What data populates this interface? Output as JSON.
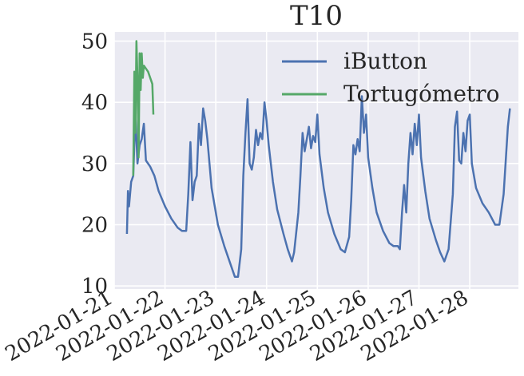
{
  "chart_data": {
    "type": "line",
    "title": "T10",
    "xlabel": "",
    "ylabel": "",
    "x_type": "datetime",
    "xlim": [
      "2022-01-21T00:00",
      "2022-01-28T23:00"
    ],
    "ylim": [
      9.5,
      51.5
    ],
    "y_ticks": [
      10,
      20,
      30,
      40,
      50
    ],
    "x_ticks": [
      "2022-01-21",
      "2022-01-22",
      "2022-01-23",
      "2022-01-24",
      "2022-01-25",
      "2022-01-26",
      "2022-01-27",
      "2022-01-28"
    ],
    "grid": true,
    "legend_position": "top-right",
    "colors": {
      "background": "#EAEAF2",
      "grid": "#FFFFFF",
      "text": "#262626"
    },
    "series": [
      {
        "name": "iButton",
        "color": "#4C72B0",
        "points": [
          [
            "2022-01-21T06:00",
            18.5
          ],
          [
            "2022-01-21T06:30",
            25.5
          ],
          [
            "2022-01-21T07:00",
            23.0
          ],
          [
            "2022-01-21T08:00",
            27.0
          ],
          [
            "2022-01-21T09:00",
            28.0
          ],
          [
            "2022-01-21T10:00",
            38.0
          ],
          [
            "2022-01-21T11:00",
            30.0
          ],
          [
            "2022-01-21T12:00",
            33.0
          ],
          [
            "2022-01-21T13:00",
            34.0
          ],
          [
            "2022-01-21T14:00",
            36.5
          ],
          [
            "2022-01-21T15:00",
            30.5
          ],
          [
            "2022-01-21T17:00",
            29.5
          ],
          [
            "2022-01-21T19:00",
            28.0
          ],
          [
            "2022-01-21T21:00",
            25.5
          ],
          [
            "2022-01-22T00:00",
            23.0
          ],
          [
            "2022-01-22T03:00",
            21.0
          ],
          [
            "2022-01-22T06:00",
            19.5
          ],
          [
            "2022-01-22T08:00",
            19.0
          ],
          [
            "2022-01-22T10:00",
            19.0
          ],
          [
            "2022-01-22T11:00",
            25.0
          ],
          [
            "2022-01-22T12:00",
            33.5
          ],
          [
            "2022-01-22T13:00",
            24.0
          ],
          [
            "2022-01-22T14:00",
            27.0
          ],
          [
            "2022-01-22T15:00",
            28.0
          ],
          [
            "2022-01-22T16:00",
            36.5
          ],
          [
            "2022-01-22T17:00",
            33.0
          ],
          [
            "2022-01-22T18:00",
            39.0
          ],
          [
            "2022-01-22T19:00",
            37.0
          ],
          [
            "2022-01-22T20:00",
            34.0
          ],
          [
            "2022-01-22T22:00",
            26.0
          ],
          [
            "2022-01-23T01:00",
            20.0
          ],
          [
            "2022-01-23T04:00",
            16.5
          ],
          [
            "2022-01-23T07:00",
            13.5
          ],
          [
            "2022-01-23T09:00",
            11.5
          ],
          [
            "2022-01-23T10:30",
            11.5
          ],
          [
            "2022-01-23T12:00",
            16.0
          ],
          [
            "2022-01-23T13:00",
            28.0
          ],
          [
            "2022-01-23T14:00",
            35.0
          ],
          [
            "2022-01-23T15:00",
            40.5
          ],
          [
            "2022-01-23T16:00",
            30.0
          ],
          [
            "2022-01-23T17:00",
            29.0
          ],
          [
            "2022-01-23T18:00",
            31.0
          ],
          [
            "2022-01-23T19:00",
            35.5
          ],
          [
            "2022-01-23T20:00",
            33.0
          ],
          [
            "2022-01-23T21:00",
            35.0
          ],
          [
            "2022-01-23T22:00",
            34.0
          ],
          [
            "2022-01-23T23:00",
            40.0
          ],
          [
            "2022-01-24T00:00",
            37.0
          ],
          [
            "2022-01-24T01:00",
            33.0
          ],
          [
            "2022-01-24T03:00",
            27.0
          ],
          [
            "2022-01-24T05:00",
            22.5
          ],
          [
            "2022-01-24T08:00",
            18.5
          ],
          [
            "2022-01-24T10:00",
            16.0
          ],
          [
            "2022-01-24T12:00",
            14.0
          ],
          [
            "2022-01-24T13:00",
            15.5
          ],
          [
            "2022-01-24T15:00",
            22.0
          ],
          [
            "2022-01-24T16:00",
            28.0
          ],
          [
            "2022-01-24T17:00",
            35.0
          ],
          [
            "2022-01-24T18:00",
            32.0
          ],
          [
            "2022-01-24T19:00",
            34.0
          ],
          [
            "2022-01-24T20:00",
            36.0
          ],
          [
            "2022-01-24T21:00",
            32.5
          ],
          [
            "2022-01-24T22:00",
            34.5
          ],
          [
            "2022-01-24T23:00",
            33.5
          ],
          [
            "2022-01-25T00:00",
            38.0
          ],
          [
            "2022-01-25T01:00",
            31.5
          ],
          [
            "2022-01-25T03:00",
            26.0
          ],
          [
            "2022-01-25T05:00",
            22.0
          ],
          [
            "2022-01-25T08:00",
            18.5
          ],
          [
            "2022-01-25T11:00",
            16.0
          ],
          [
            "2022-01-25T13:00",
            15.5
          ],
          [
            "2022-01-25T15:00",
            18.0
          ],
          [
            "2022-01-25T16:00",
            24.0
          ],
          [
            "2022-01-25T17:00",
            33.0
          ],
          [
            "2022-01-25T18:00",
            31.5
          ],
          [
            "2022-01-25T19:00",
            34.0
          ],
          [
            "2022-01-25T20:00",
            32.0
          ],
          [
            "2022-01-25T21:00",
            41.0
          ],
          [
            "2022-01-25T22:00",
            35.0
          ],
          [
            "2022-01-25T23:00",
            38.0
          ],
          [
            "2022-01-26T00:00",
            31.0
          ],
          [
            "2022-01-26T02:00",
            26.0
          ],
          [
            "2022-01-26T04:00",
            22.0
          ],
          [
            "2022-01-26T07:00",
            19.0
          ],
          [
            "2022-01-26T10:00",
            17.0
          ],
          [
            "2022-01-26T12:00",
            16.5
          ],
          [
            "2022-01-26T14:00",
            16.5
          ],
          [
            "2022-01-26T15:00",
            16.0
          ],
          [
            "2022-01-26T16:00",
            22.0
          ],
          [
            "2022-01-26T17:00",
            26.5
          ],
          [
            "2022-01-26T18:00",
            22.0
          ],
          [
            "2022-01-26T19:00",
            30.0
          ],
          [
            "2022-01-26T20:00",
            35.0
          ],
          [
            "2022-01-26T21:00",
            31.5
          ],
          [
            "2022-01-26T22:00",
            36.5
          ],
          [
            "2022-01-26T23:00",
            33.0
          ],
          [
            "2022-01-27T00:00",
            38.0
          ],
          [
            "2022-01-27T01:00",
            31.0
          ],
          [
            "2022-01-27T03:00",
            25.5
          ],
          [
            "2022-01-27T05:00",
            21.0
          ],
          [
            "2022-01-27T08:00",
            17.5
          ],
          [
            "2022-01-27T10:00",
            15.5
          ],
          [
            "2022-01-27T12:00",
            14.0
          ],
          [
            "2022-01-27T14:00",
            16.0
          ],
          [
            "2022-01-27T16:00",
            25.0
          ],
          [
            "2022-01-27T17:00",
            36.0
          ],
          [
            "2022-01-27T18:00",
            38.5
          ],
          [
            "2022-01-27T19:00",
            30.5
          ],
          [
            "2022-01-27T20:00",
            30.0
          ],
          [
            "2022-01-27T21:00",
            35.0
          ],
          [
            "2022-01-27T22:00",
            32.0
          ],
          [
            "2022-01-27T23:00",
            37.0
          ],
          [
            "2022-01-28T00:00",
            38.0
          ],
          [
            "2022-01-28T01:00",
            30.0
          ],
          [
            "2022-01-28T03:00",
            26.0
          ],
          [
            "2022-01-28T06:00",
            23.5
          ],
          [
            "2022-01-28T09:00",
            22.0
          ],
          [
            "2022-01-28T12:00",
            20.0
          ],
          [
            "2022-01-28T14:00",
            20.0
          ],
          [
            "2022-01-28T16:00",
            25.0
          ],
          [
            "2022-01-28T18:00",
            36.0
          ],
          [
            "2022-01-28T19:00",
            39.0
          ]
        ]
      },
      {
        "name": "Tortugómetro",
        "color": "#55A868",
        "points": [
          [
            "2022-01-21T09:00",
            28.0
          ],
          [
            "2022-01-21T09:30",
            45.0
          ],
          [
            "2022-01-21T10:00",
            35.0
          ],
          [
            "2022-01-21T10:30",
            50.0
          ],
          [
            "2022-01-21T11:00",
            44.0
          ],
          [
            "2022-01-21T11:30",
            31.0
          ],
          [
            "2022-01-21T12:00",
            48.0
          ],
          [
            "2022-01-21T12:30",
            42.0
          ],
          [
            "2022-01-21T13:00",
            48.0
          ],
          [
            "2022-01-21T13:30",
            44.0
          ],
          [
            "2022-01-21T14:00",
            46.0
          ],
          [
            "2022-01-21T16:00",
            45.0
          ],
          [
            "2022-01-21T18:00",
            43.0
          ],
          [
            "2022-01-21T18:30",
            38.0
          ]
        ]
      }
    ]
  }
}
